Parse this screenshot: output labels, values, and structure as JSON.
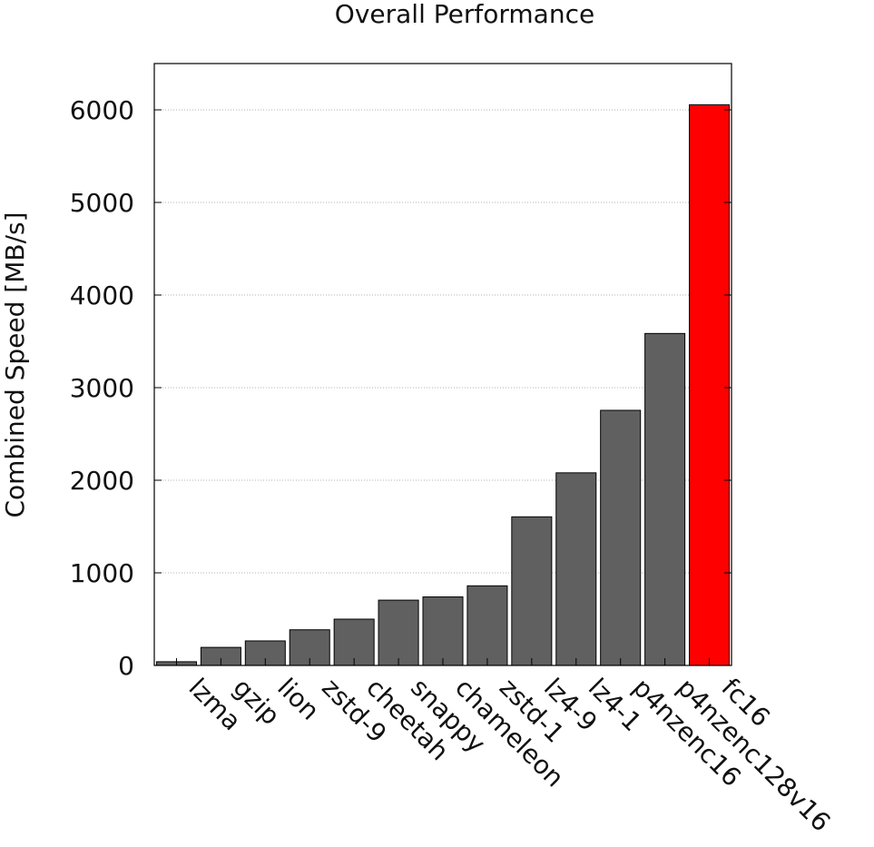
{
  "chart_data": {
    "type": "bar",
    "title": "Overall Performance",
    "ylabel": "Combined Speed [MB/s]",
    "xlabel": "",
    "categories": [
      "lzma",
      "gzip",
      "lion",
      "zstd-9",
      "cheetah",
      "snappy",
      "chameleon",
      "zstd-1",
      "lz4-9",
      "lz4-1",
      "p4nzenc16",
      "p4nzenc128v16",
      "fc16"
    ],
    "values": [
      40,
      195,
      265,
      385,
      500,
      705,
      740,
      860,
      1605,
      2080,
      2755,
      3585,
      6055
    ],
    "ylim": [
      0,
      6500
    ],
    "yticks": [
      0,
      1000,
      2000,
      3000,
      4000,
      5000,
      6000
    ],
    "grid": true,
    "legend": "none",
    "colors": {
      "default": "#606060",
      "highlight": "#ff0000"
    },
    "highlight": [
      "fc16"
    ]
  }
}
